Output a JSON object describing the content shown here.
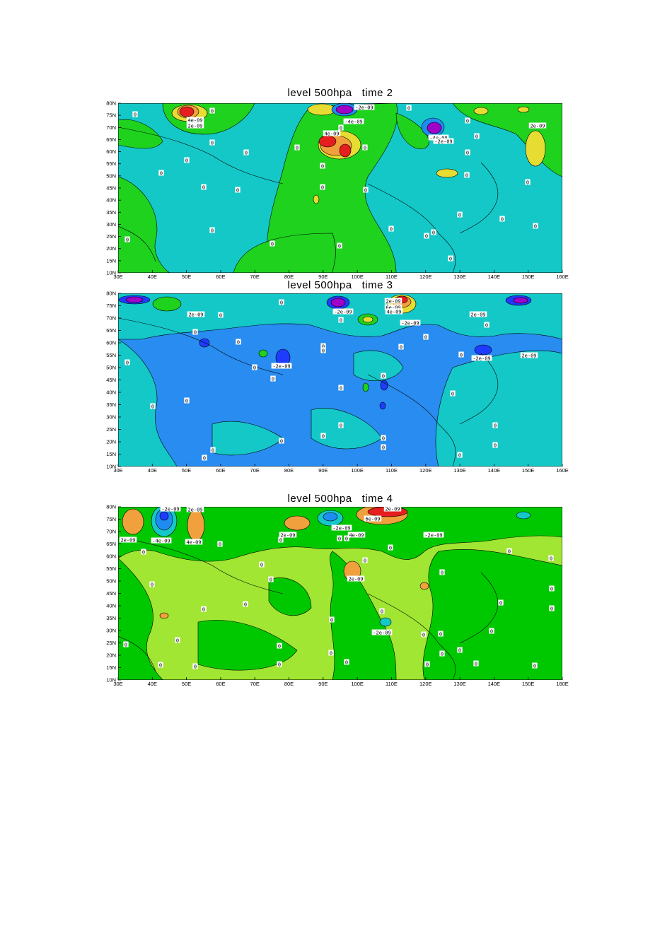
{
  "panels": [
    {
      "title": "level 500hpa   time 2",
      "x_labels": [
        "30E",
        "40E",
        "50E",
        "60E",
        "70E",
        "80E",
        "90E",
        "100E",
        "110E",
        "120E",
        "130E",
        "140E",
        "150E",
        "160E"
      ],
      "y_labels": [
        "10N",
        "15N",
        "20N",
        "25N",
        "30N",
        "35N",
        "40N",
        "45N",
        "50N",
        "55N",
        "60N",
        "65N",
        "70N",
        "75N",
        "80N"
      ],
      "contour_labels": [
        "-2e-09",
        "4e-09",
        "2e-09",
        "-4e-09",
        "4e-09",
        "-4e-09",
        "-2e-09",
        "2e-09",
        "0",
        "0",
        "0",
        "0",
        "0",
        "0",
        "0",
        "0",
        "0",
        "0",
        "0",
        "0",
        "0",
        "0",
        "0",
        "0",
        "0",
        "0",
        "0",
        "0",
        "0",
        "0",
        "0",
        "0",
        "0",
        "0",
        "0",
        "0",
        "0",
        "0",
        "0"
      ]
    },
    {
      "title": "level 500hpa   time 3",
      "x_labels": [
        "30E",
        "40E",
        "50E",
        "60E",
        "70E",
        "80E",
        "90E",
        "100E",
        "110E",
        "120E",
        "130E",
        "140E",
        "150E",
        "160E"
      ],
      "y_labels": [
        "10N",
        "15N",
        "20N",
        "25N",
        "30N",
        "35N",
        "40N",
        "45N",
        "50N",
        "55N",
        "60N",
        "65N",
        "70N",
        "75N",
        "80N"
      ],
      "contour_labels": [
        "2e-09",
        "-2e-09",
        "2e-09",
        "6e-09",
        "4e-09",
        "-2e-09",
        "2e-09",
        "-2e-09",
        "-2e-09",
        "2e-09",
        "0",
        "0",
        "0",
        "0",
        "0",
        "0",
        "0",
        "0",
        "0",
        "0",
        "0",
        "0",
        "0",
        "0",
        "0",
        "0",
        "0",
        "0",
        "0",
        "0",
        "0",
        "0",
        "0",
        "0",
        "0",
        "0",
        "0",
        "0",
        "0"
      ]
    },
    {
      "title": "level 500hpa   time 4",
      "x_labels": [
        "30E",
        "40E",
        "50E",
        "60E",
        "70E",
        "80E",
        "90E",
        "100E",
        "110E",
        "120E",
        "130E",
        "140E",
        "150E",
        "160E"
      ],
      "y_labels": [
        "10N",
        "15N",
        "20N",
        "25N",
        "30N",
        "35N",
        "40N",
        "45N",
        "50N",
        "55N",
        "60N",
        "65N",
        "70N",
        "75N",
        "80N"
      ],
      "contour_labels": [
        "-2e-09",
        "2e-09",
        "2e-09",
        "6e-09",
        "2e-09",
        "-4e-09",
        "4e-09",
        "2e-09",
        "-2e-09",
        "4e-09",
        "-2e-09",
        "2e-09",
        "-2e-09",
        "0",
        "0",
        "0",
        "0",
        "0",
        "0",
        "0",
        "0",
        "0",
        "0",
        "0",
        "0",
        "0",
        "0",
        "0",
        "0",
        "0",
        "0",
        "0",
        "0",
        "0",
        "0",
        "0",
        "0",
        "0",
        "0",
        "0",
        "0",
        "0",
        "0",
        "0",
        "0",
        "0",
        "0",
        "0",
        "0"
      ]
    }
  ]
}
